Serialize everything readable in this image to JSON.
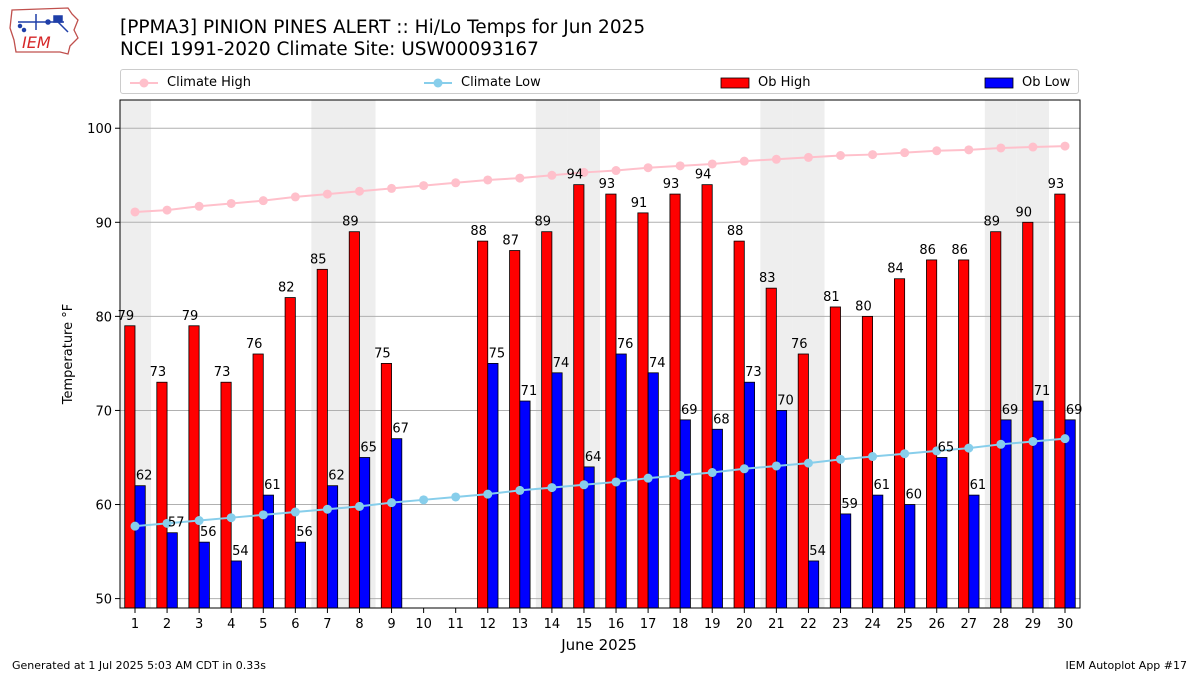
{
  "header": {
    "title_line1": "[PPMA3] PINION PINES ALERT :: Hi/Lo Temps for Jun 2025",
    "title_line2": "NCEI 1991-2020 Climate Site: USW00093167",
    "logo_text": "IEM"
  },
  "footer": {
    "generated": "Generated at 1 Jul 2025 5:03 AM CDT in 0.33s",
    "app": "IEM Autoplot App #17"
  },
  "legend": {
    "climate_high": "Climate High",
    "climate_low": "Climate Low",
    "ob_high": "Ob High",
    "ob_low": "Ob Low"
  },
  "colors": {
    "ob_high": "#ff0000",
    "ob_low": "#0000ff",
    "climate_high": "#ffc0cb",
    "climate_low": "#87ceeb",
    "weekend_shade": "#eeeeee",
    "grid": "#b0b0b0"
  },
  "chart_data": {
    "type": "bar",
    "xlabel": "June 2025",
    "ylabel": "Temperature °F",
    "ylim": [
      49,
      103
    ],
    "yticks": [
      50,
      60,
      70,
      80,
      90,
      100
    ],
    "grid": "horizontal",
    "legend_position": "top",
    "days": [
      1,
      2,
      3,
      4,
      5,
      6,
      7,
      8,
      9,
      10,
      11,
      12,
      13,
      14,
      15,
      16,
      17,
      18,
      19,
      20,
      21,
      22,
      23,
      24,
      25,
      26,
      27,
      28,
      29,
      30
    ],
    "weekend_days": [
      1,
      7,
      8,
      14,
      15,
      21,
      22,
      28,
      29
    ],
    "series": [
      {
        "name": "Ob High",
        "kind": "bar",
        "values": [
          79,
          73,
          79,
          73,
          76,
          82,
          85,
          89,
          75,
          null,
          null,
          88,
          87,
          89,
          94,
          93,
          91,
          93,
          94,
          88,
          83,
          76,
          81,
          80,
          84,
          86,
          86,
          89,
          90,
          93
        ]
      },
      {
        "name": "Ob Low",
        "kind": "bar",
        "values": [
          62,
          57,
          56,
          54,
          61,
          56,
          62,
          65,
          67,
          null,
          null,
          75,
          71,
          74,
          64,
          76,
          74,
          69,
          68,
          73,
          70,
          54,
          59,
          61,
          60,
          65,
          61,
          69,
          71,
          69
        ]
      },
      {
        "name": "Climate High",
        "kind": "line",
        "values": [
          91.1,
          91.3,
          91.7,
          92.0,
          92.3,
          92.7,
          93.0,
          93.3,
          93.6,
          93.9,
          94.2,
          94.5,
          94.7,
          95.0,
          95.3,
          95.5,
          95.8,
          96.0,
          96.2,
          96.5,
          96.7,
          96.9,
          97.1,
          97.2,
          97.4,
          97.6,
          97.7,
          97.9,
          98.0,
          98.1
        ]
      },
      {
        "name": "Climate Low",
        "kind": "line",
        "values": [
          57.7,
          58.0,
          58.3,
          58.6,
          58.9,
          59.2,
          59.5,
          59.8,
          60.2,
          60.5,
          60.8,
          61.1,
          61.5,
          61.8,
          62.1,
          62.4,
          62.8,
          63.1,
          63.4,
          63.8,
          64.1,
          64.4,
          64.8,
          65.1,
          65.4,
          65.7,
          66.0,
          66.4,
          66.7,
          67.0
        ]
      }
    ]
  }
}
